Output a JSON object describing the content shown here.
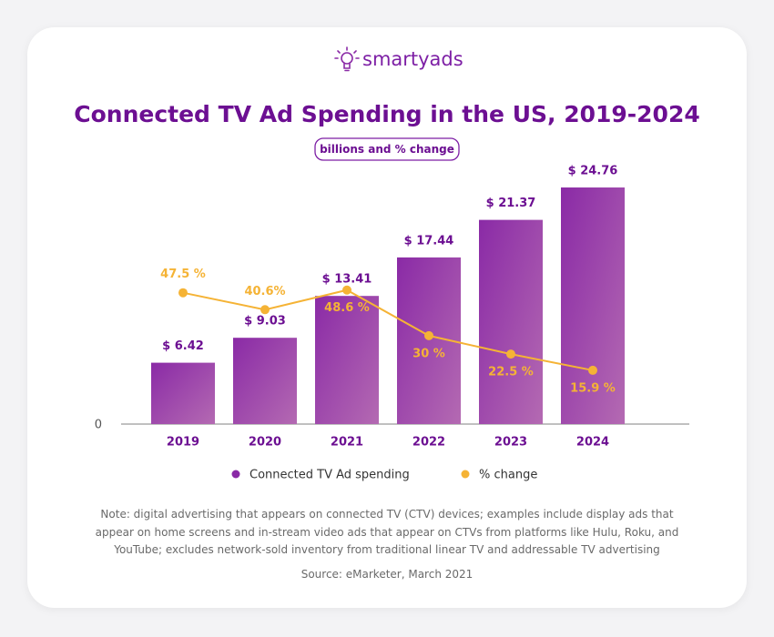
{
  "chart_data": {
    "type": "bar",
    "logo": "smartyads",
    "title": "Connected TV Ad Spending in the US, 2019-2024",
    "subtitle": "billions and % change",
    "categories": [
      "2019",
      "2020",
      "2021",
      "2022",
      "2023",
      "2024"
    ],
    "series": [
      {
        "name": "Connected TV Ad spending",
        "type": "bar",
        "color": "#8a2aa6",
        "values": [
          6.42,
          9.03,
          13.41,
          17.44,
          21.37,
          24.76
        ],
        "value_labels": [
          "$ 6.42",
          "$ 9.03",
          "$ 13.41",
          "$ 17.44",
          "$ 21.37",
          "$ 24.76"
        ]
      },
      {
        "name": "% change",
        "type": "line",
        "axis": "y2",
        "color": "#f5b335",
        "values": [
          47.5,
          40.6,
          48.6,
          30,
          22.5,
          15.9
        ],
        "value_labels": [
          "47.5 %",
          "40.6%",
          "48.6 %",
          "30 %",
          "22.5 %",
          "15.9 %"
        ]
      }
    ],
    "ylim": [
      0,
      28
    ],
    "yticks": [
      0
    ],
    "y2lim": [
      -6,
      103
    ],
    "note": "Note: digital advertising that appears on connected TV (CTV) devices; examples include display ads that appear on home screens and in-stream video ads that appear on CTVs from platforms like Hulu, Roku, and YouTube; excludes network-sold inventory from traditional linear TV and addressable TV advertising",
    "source": "Source: eMarketer, March 2021"
  }
}
